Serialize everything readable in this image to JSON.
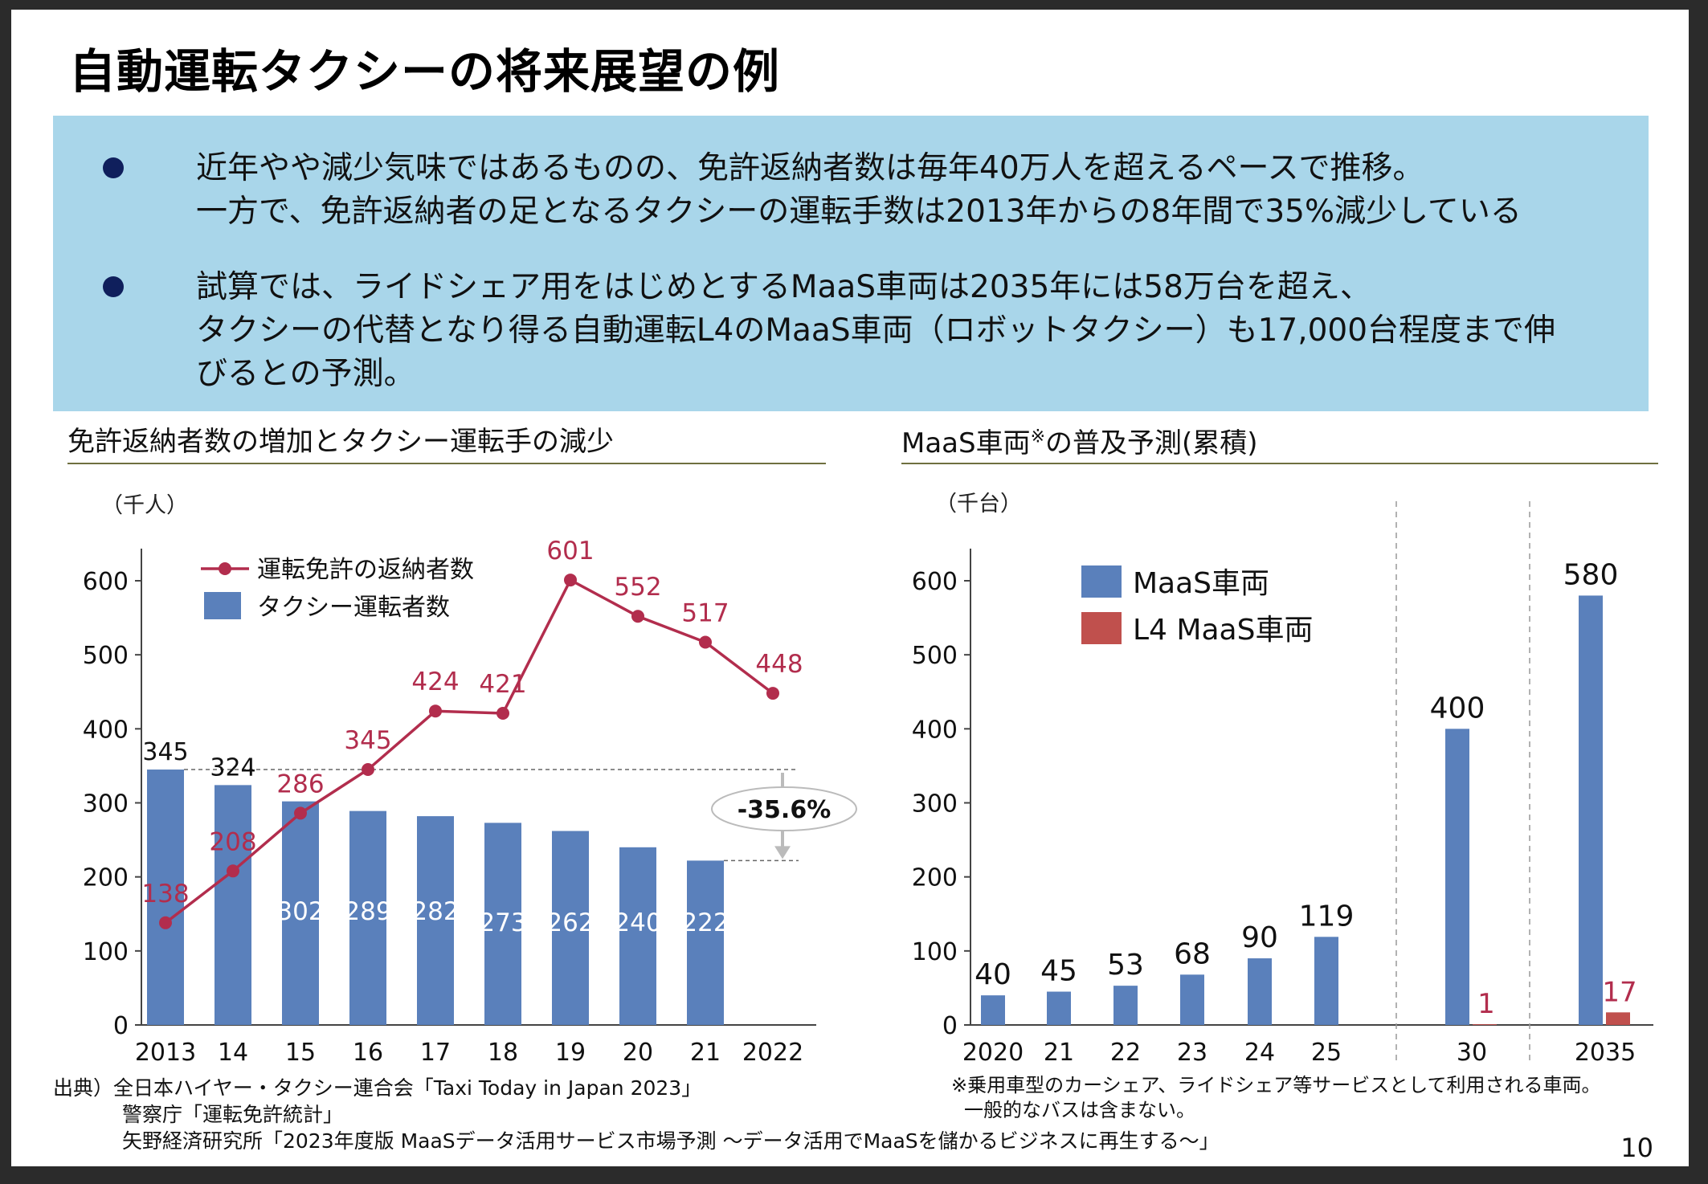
{
  "slide": {
    "title": "自動運転タクシーの将来展望の例",
    "page_number": "10"
  },
  "summary": {
    "bullets": [
      {
        "lines": [
          "近年やや減少気味ではあるものの、免許返納者数は毎年40万人を超えるペースで推移。",
          "一方で、免許返納者の足となるタクシーの運転手数は2013年からの8年間で35%減少している"
        ]
      },
      {
        "lines": [
          "試算では、ライドシェア用をはじめとするMaaS車両は2035年には58万台を超え、",
          "タクシーの代替となり得る自動運転L4のMaaS車両（ロボットタクシー）も17,000台程度まで伸",
          "びるとの予測。"
        ]
      }
    ]
  },
  "chart_data": [
    {
      "type": "bar",
      "title": "免許返納者数の増加とタクシー運転手の減少",
      "unit_label": "（千人）",
      "categories": [
        "2013",
        "14",
        "15",
        "16",
        "17",
        "18",
        "19",
        "20",
        "21",
        "2022"
      ],
      "ylim": [
        0,
        650
      ],
      "yticks": [
        0,
        100,
        200,
        300,
        400,
        500,
        600
      ],
      "series": [
        {
          "name": "タクシー運転者数",
          "kind": "bar",
          "color": "#5a80bb",
          "values": [
            345,
            324,
            302,
            289,
            282,
            273,
            262,
            240,
            222,
            null
          ]
        },
        {
          "name": "運転免許の返納者数",
          "kind": "line",
          "color": "#b22d4d",
          "values": [
            138,
            208,
            286,
            345,
            424,
            421,
            601,
            552,
            517,
            448
          ]
        }
      ],
      "annotation": "-35.6%",
      "legend_position": "top-left"
    },
    {
      "type": "bar",
      "title": "MaaS車両",
      "title_suffix": "の普及予測(累積)",
      "title_mark": "※",
      "unit_label": "（千台）",
      "categories": [
        "2020",
        "21",
        "22",
        "23",
        "24",
        "25",
        "30",
        "2035"
      ],
      "ylim": [
        0,
        650
      ],
      "yticks": [
        0,
        100,
        200,
        300,
        400,
        500,
        600
      ],
      "series": [
        {
          "name": "MaaS車両",
          "color": "#5a80bb",
          "values": [
            40,
            45,
            53,
            68,
            90,
            119,
            400,
            580
          ]
        },
        {
          "name": "L4 MaaS車両",
          "color": "#c0504d",
          "values": [
            null,
            null,
            null,
            null,
            null,
            null,
            1,
            17
          ]
        }
      ],
      "legend_position": "top-left"
    }
  ],
  "source": {
    "label": "出典）",
    "lines": [
      "全日本ハイヤー・タクシー連合会「Taxi Today in Japan 2023」",
      "警察庁「運転免許統計」",
      "矢野経済研究所「2023年度版 MaaSデータ活用サービス市場予測 ～データ活用でMaaSを儲かるビジネスに再生する～」"
    ]
  },
  "note": {
    "lines": [
      "※乗用車型のカーシェア、ライドシェア等サービスとして利用される車両。",
      "一般的なバスは含まない。"
    ]
  }
}
